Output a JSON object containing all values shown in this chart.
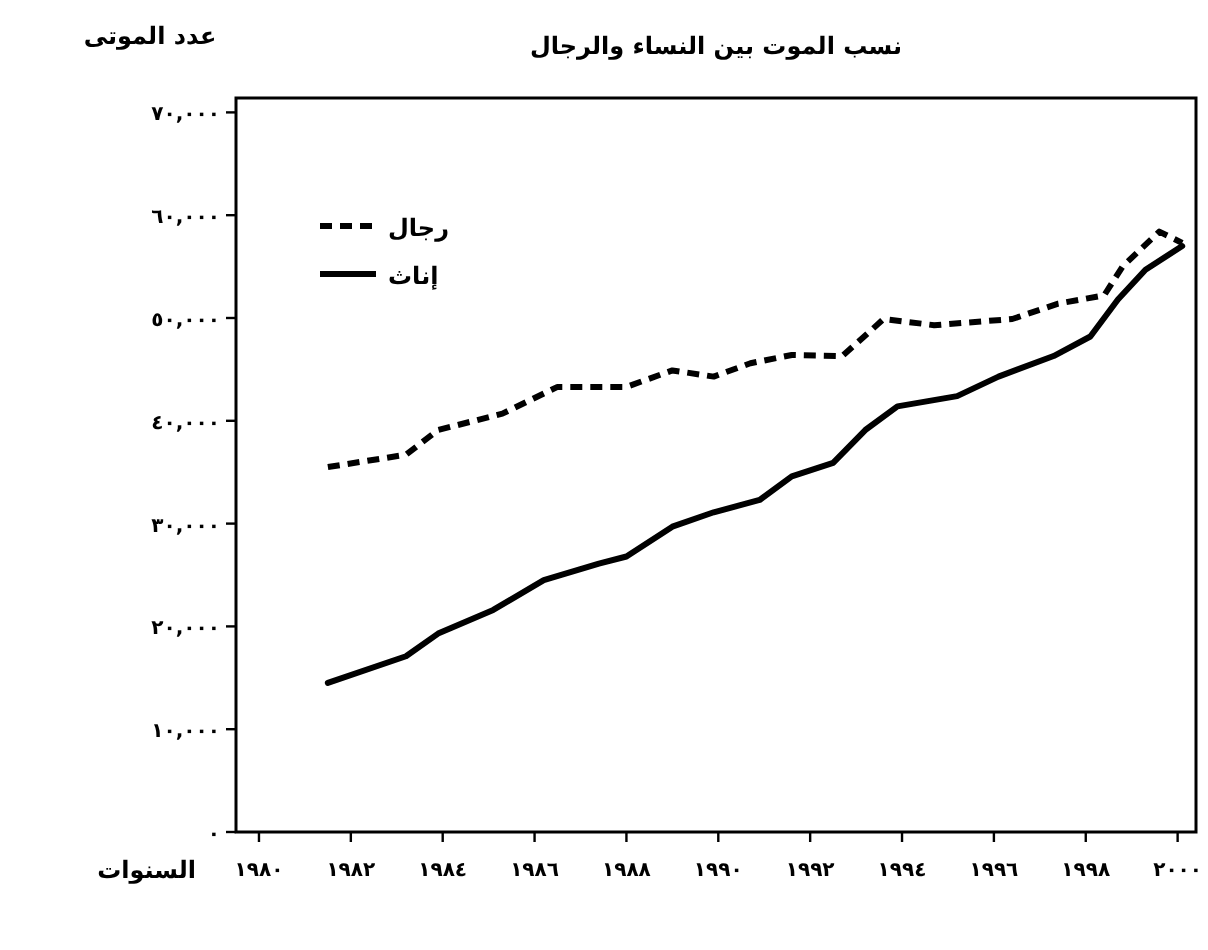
{
  "chart_data": {
    "type": "line",
    "title": "نسب الموت بين النساء والرجال",
    "ylabel": "عدد الموتى",
    "xlabel": "السنوات",
    "xlim": [
      1979.5,
      2000.4
    ],
    "ylim": [
      0,
      71400
    ],
    "xticks": [
      {
        "value": 1980,
        "label": "١٩٨٠"
      },
      {
        "value": 1982,
        "label": "١٩٨٢"
      },
      {
        "value": 1984,
        "label": "١٩٨٤"
      },
      {
        "value": 1986,
        "label": "١٩٨٦"
      },
      {
        "value": 1988,
        "label": "١٩٨٨"
      },
      {
        "value": 1990,
        "label": "١٩٩٠"
      },
      {
        "value": 1992,
        "label": "١٩٩٢"
      },
      {
        "value": 1994,
        "label": "١٩٩٤"
      },
      {
        "value": 1996,
        "label": "١٩٩٦"
      },
      {
        "value": 1998,
        "label": "١٩٩٨"
      },
      {
        "value": 2000,
        "label": "٢٠٠٠"
      }
    ],
    "yticks": [
      {
        "value": 0,
        "label": "٠"
      },
      {
        "value": 10000,
        "label": "١٠,٠٠٠"
      },
      {
        "value": 20000,
        "label": "٢٠,٠٠٠"
      },
      {
        "value": 30000,
        "label": "٣٠,٠٠٠"
      },
      {
        "value": 40000,
        "label": "٤٠,٠٠٠"
      },
      {
        "value": 50000,
        "label": "٥٠,٠٠٠"
      },
      {
        "value": 60000,
        "label": "٦٠,٠٠٠"
      },
      {
        "value": 70000,
        "label": "٧٠,٠٠٠"
      }
    ],
    "legend": "top left",
    "grid": false,
    "marker": "none",
    "series": [
      {
        "name": "رجال",
        "color": "#000000",
        "line_style": "dashed",
        "x": [
          1981.5,
          1983.2,
          1983.9,
          1985.3,
          1986.5,
          1988.0,
          1989.0,
          1989.9,
          1990.7,
          1991.6,
          1992.7,
          1993.6,
          1994.7,
          1996.4,
          1997.4,
          1998.4,
          1998.8,
          1999.6,
          2000.1
        ],
        "values": [
          35500,
          36700,
          39100,
          40700,
          43300,
          43300,
          44900,
          44300,
          45600,
          46400,
          46300,
          49900,
          49300,
          49900,
          51400,
          52200,
          55000,
          58400,
          57300
        ]
      },
      {
        "name": "إناث",
        "color": "#000000",
        "line_style": "solid",
        "x": [
          1981.5,
          1983.2,
          1983.9,
          1985.1,
          1986.2,
          1987.4,
          1988.0,
          1989.0,
          1989.9,
          1990.9,
          1991.6,
          1992.5,
          1993.2,
          1993.9,
          1995.2,
          1996.1,
          1997.3,
          1998.1,
          1998.7,
          1999.3,
          2000.1
        ],
        "values": [
          14500,
          17100,
          19300,
          21600,
          24500,
          26100,
          26800,
          29700,
          31100,
          32300,
          34600,
          35900,
          39100,
          41400,
          42400,
          44300,
          46300,
          48200,
          51800,
          54700,
          57000
        ]
      }
    ]
  }
}
